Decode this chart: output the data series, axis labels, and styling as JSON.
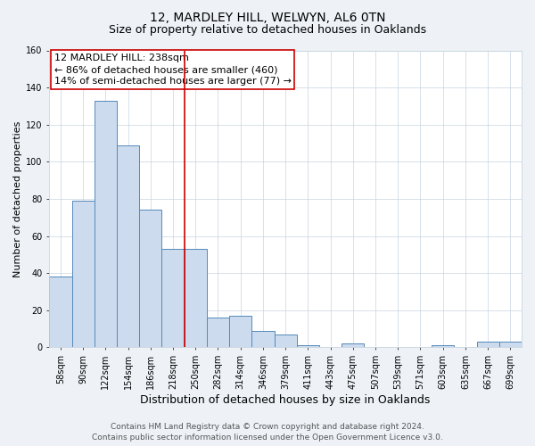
{
  "title": "12, MARDLEY HILL, WELWYN, AL6 0TN",
  "subtitle": "Size of property relative to detached houses in Oaklands",
  "xlabel": "Distribution of detached houses by size in Oaklands",
  "ylabel": "Number of detached properties",
  "bar_labels": [
    "58sqm",
    "90sqm",
    "122sqm",
    "154sqm",
    "186sqm",
    "218sqm",
    "250sqm",
    "282sqm",
    "314sqm",
    "346sqm",
    "379sqm",
    "411sqm",
    "443sqm",
    "475sqm",
    "507sqm",
    "539sqm",
    "571sqm",
    "603sqm",
    "635sqm",
    "667sqm",
    "699sqm"
  ],
  "bar_values": [
    38,
    79,
    133,
    109,
    74,
    53,
    53,
    16,
    17,
    9,
    7,
    1,
    0,
    2,
    0,
    0,
    0,
    1,
    0,
    3,
    3
  ],
  "bar_width": 1.0,
  "bar_color": "#ccdcee",
  "bar_edge_color": "#5588bb",
  "bar_edge_width": 0.7,
  "vline_x": 6.0,
  "vline_color": "#cc0000",
  "vline_linewidth": 1.2,
  "ylim": [
    0,
    160
  ],
  "yticks": [
    0,
    20,
    40,
    60,
    80,
    100,
    120,
    140,
    160
  ],
  "annotation_line1": "12 MARDLEY HILL: 238sqm",
  "annotation_line2": "← 86% of detached houses are smaller (460)",
  "annotation_line3": "14% of semi-detached houses are larger (77) →",
  "annotation_box_color": "#cc0000",
  "footer_line1": "Contains HM Land Registry data © Crown copyright and database right 2024.",
  "footer_line2": "Contains public sector information licensed under the Open Government Licence v3.0.",
  "bg_color": "#eef2f7",
  "plot_bg_color": "#ffffff",
  "grid_color": "#c8d4e0",
  "title_fontsize": 10,
  "subtitle_fontsize": 9,
  "xlabel_fontsize": 9,
  "ylabel_fontsize": 8,
  "tick_fontsize": 7,
  "footer_fontsize": 6.5,
  "annotation_fontsize": 8
}
